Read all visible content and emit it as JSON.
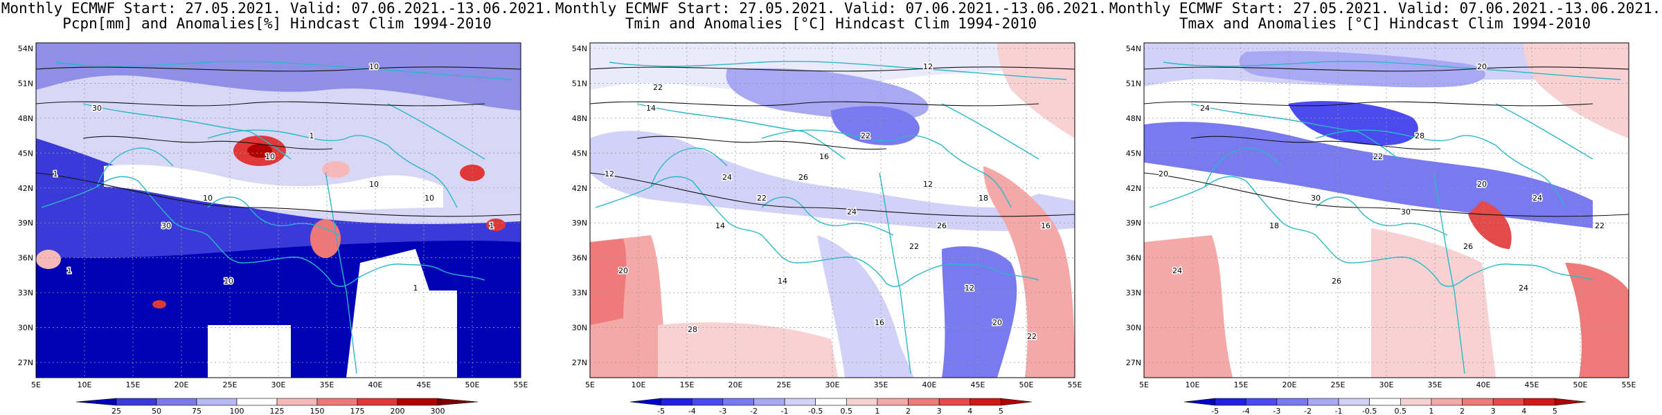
{
  "panels": [
    {
      "title1": "Monthly ECMWF Start: 27.05.2021. Valid: 07.06.2021.-13.06.2021.",
      "title2": "Pcpn[mm] and Anomalies[%] Hindcast Clim 1994-2010",
      "colorbar": [
        "25",
        "50",
        "75",
        "100",
        "125",
        "150",
        "175",
        "200",
        "300"
      ],
      "colors": [
        "#0000b4",
        "#3a3ad8",
        "#7a7ae8",
        "#b8b8f2",
        "#ffffff",
        "#f6b8b8",
        "#ee7878",
        "#e03838",
        "#b00000",
        "#7a0000"
      ],
      "contour_labels": [
        "1",
        "10",
        "30",
        "10",
        "30",
        "10",
        "10",
        "1",
        "10",
        "1",
        "1",
        "10",
        "1"
      ]
    },
    {
      "title1": "Monthly ECMWF Start: 27.05.2021. Valid: 07.06.2021.-13.06.2021.",
      "title2": "Tmin and Anomalies [°C] Hindcast Clim 1994-2010",
      "colorbar": [
        "-5",
        "-4",
        "-3",
        "-2",
        "-1",
        "-0.5",
        "0.5",
        "1",
        "2",
        "3",
        "4",
        "5"
      ],
      "colors": [
        "#0000c8",
        "#2020e0",
        "#4a4aee",
        "#7a7af0",
        "#a8a8f4",
        "#d2d2f8",
        "#ffffff",
        "#f8d2d2",
        "#f4a8a8",
        "#ee7a7a",
        "#e44a4a",
        "#d01818",
        "#b00000"
      ],
      "contour_labels": [
        "12",
        "12",
        "14",
        "16",
        "14",
        "12",
        "18",
        "16",
        "14",
        "12",
        "22",
        "22",
        "20",
        "22",
        "24",
        "26",
        "20",
        "28",
        "16",
        "22",
        "24",
        "26",
        "22"
      ]
    },
    {
      "title1": "Monthly ECMWF Start: 27.05.2021. Valid: 07.06.2021.-13.06.2021.",
      "title2": "Tmax and Anomalies [°C] Hindcast Clim 1994-2010",
      "colorbar": [
        "-5",
        "-4",
        "-3",
        "-2",
        "-1",
        "-0.5",
        "0.5",
        "1",
        "2",
        "3",
        "4",
        "5"
      ],
      "colors": [
        "#0000c8",
        "#2020e0",
        "#4a4aee",
        "#7a7af0",
        "#a8a8f4",
        "#d2d2f8",
        "#ffffff",
        "#f8d2d2",
        "#f4a8a8",
        "#ee7a7a",
        "#e44a4a",
        "#d01818",
        "#b00000"
      ],
      "contour_labels": [
        "20",
        "20",
        "24",
        "22",
        "18",
        "20",
        "24",
        "22",
        "26",
        "24",
        "28",
        "30",
        "24",
        "26",
        "30"
      ]
    }
  ],
  "axes": {
    "lat_ticks": [
      "54N",
      "51N",
      "48N",
      "45N",
      "42N",
      "39N",
      "36N",
      "33N",
      "30N",
      "27N"
    ],
    "lon_ticks": [
      "5E",
      "10E",
      "15E",
      "20E",
      "25E",
      "30E",
      "35E",
      "40E",
      "45E",
      "50E",
      "55E"
    ]
  }
}
